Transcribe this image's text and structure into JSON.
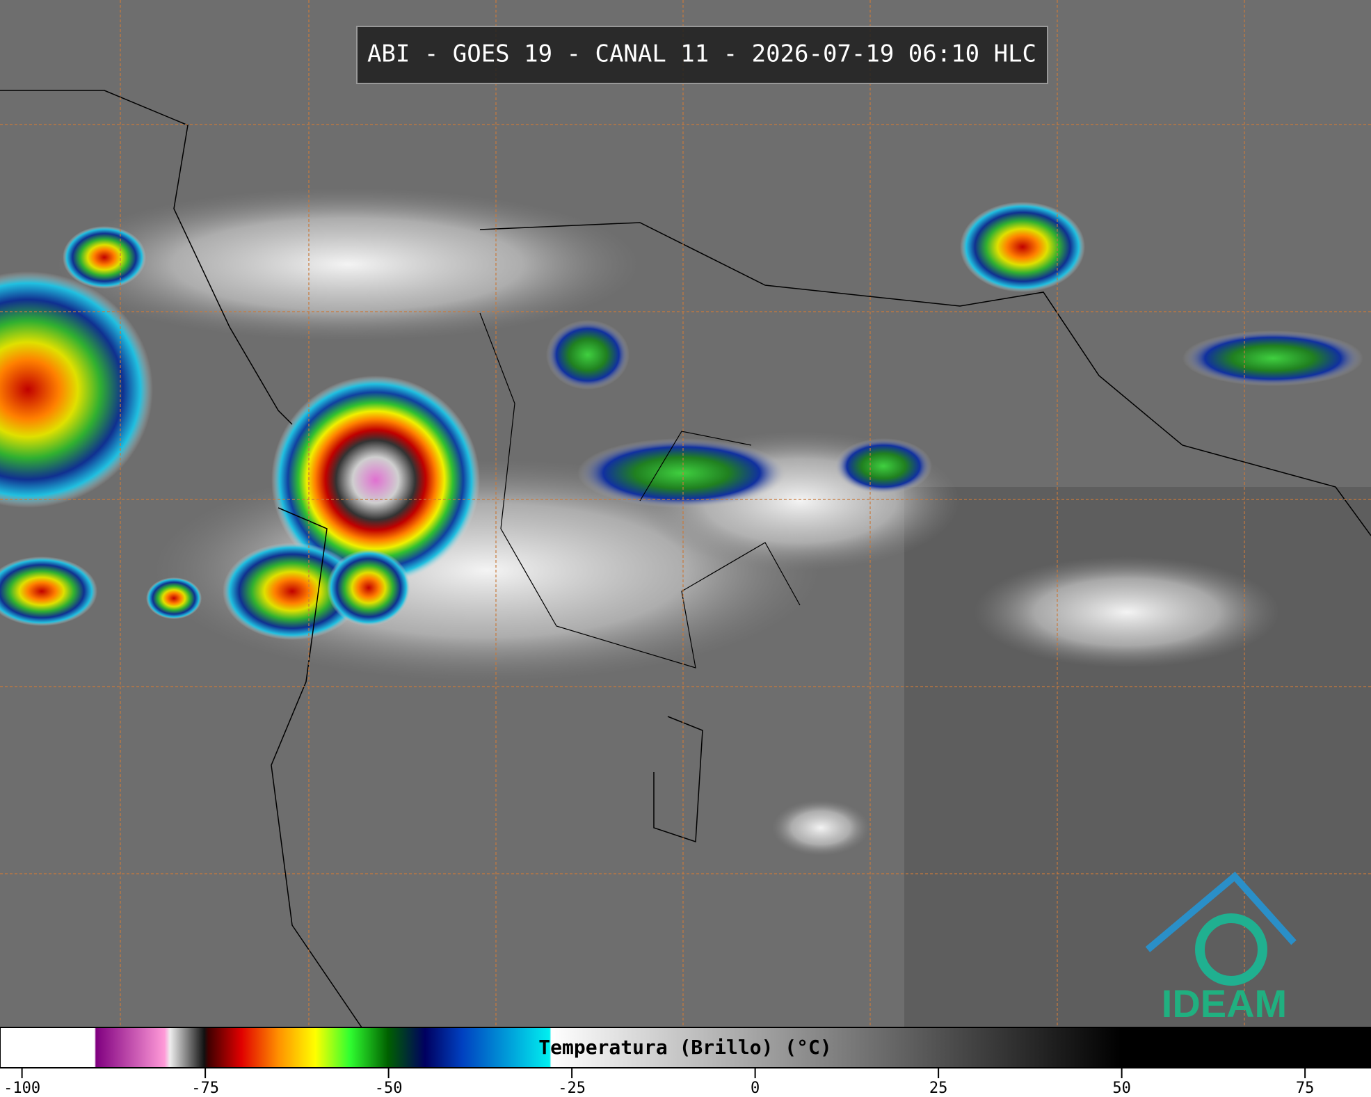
{
  "header": {
    "title": "ABI - GOES 19 - CANAL 11 - 2026-07-19 06:10 HLC"
  },
  "colorbar": {
    "label": "Temperatura (Brillo) (°C)",
    "xlim": [
      -103,
      84
    ],
    "xticks": [
      -100,
      -75,
      -50,
      -25,
      0,
      25,
      50,
      75
    ]
  },
  "logo": {
    "text": "IDEAM"
  }
}
